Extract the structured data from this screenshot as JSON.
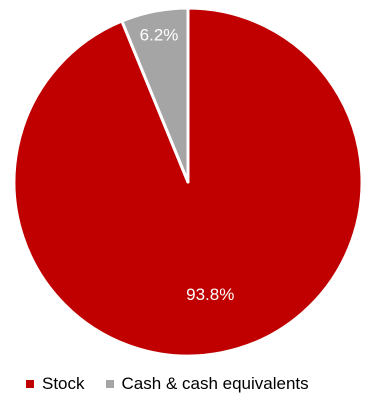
{
  "chart_data": {
    "type": "pie",
    "title": "",
    "categories": [
      "Stock",
      "Cash & cash equivalents"
    ],
    "values": [
      93.8,
      6.2
    ],
    "data_labels": [
      "93.8%",
      "6.2%"
    ],
    "colors": [
      "#C00000",
      "#A5A5A5"
    ],
    "label_color": "#FFFFFF",
    "slice_border_color": "#FFFFFF",
    "legend_position": "bottom",
    "start_angle_deg": 0,
    "direction": "clockwise"
  }
}
